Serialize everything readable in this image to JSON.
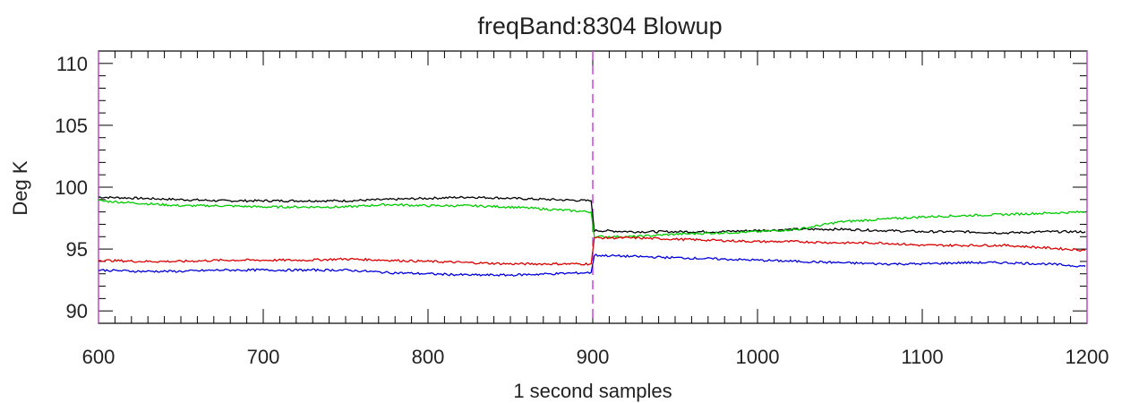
{
  "chart_data": {
    "type": "line",
    "title": "freqBand:8304 Blowup",
    "xlabel": "1 second samples",
    "ylabel": "Deg K",
    "xlim": [
      600,
      1200
    ],
    "ylim": [
      89,
      111
    ],
    "x_ticks": [
      600,
      700,
      800,
      900,
      1000,
      1100,
      1200
    ],
    "y_ticks": [
      90,
      95,
      100,
      105,
      110
    ],
    "y_minor_step": 1,
    "x_minor_step": 10,
    "grid": false,
    "marker_line": {
      "x": 900,
      "color": "#cc44dd",
      "style": "dashed"
    },
    "colors": {
      "frame": "#000000",
      "text": "#222222"
    },
    "series": [
      {
        "color": "#000000",
        "x": [
          600,
          625,
          650,
          675,
          700,
          725,
          750,
          775,
          800,
          825,
          850,
          875,
          899,
          901,
          925,
          950,
          975,
          1000,
          1025,
          1050,
          1075,
          1100,
          1125,
          1150,
          1175,
          1199
        ],
        "y": [
          99.2,
          99.1,
          99.0,
          98.9,
          98.9,
          98.9,
          98.9,
          99.0,
          99.1,
          99.2,
          99.1,
          99.0,
          98.9,
          96.5,
          96.4,
          96.4,
          96.4,
          96.5,
          96.6,
          96.6,
          96.5,
          96.4,
          96.4,
          96.3,
          96.4,
          96.4
        ]
      },
      {
        "color": "#00cc00",
        "x": [
          600,
          625,
          650,
          675,
          700,
          725,
          750,
          775,
          800,
          825,
          850,
          875,
          899,
          901,
          925,
          950,
          975,
          1000,
          1025,
          1050,
          1075,
          1100,
          1125,
          1150,
          1175,
          1199
        ],
        "y": [
          98.9,
          98.7,
          98.5,
          98.5,
          98.4,
          98.4,
          98.4,
          98.6,
          98.5,
          98.5,
          98.4,
          98.2,
          98.0,
          96.0,
          96.0,
          96.2,
          96.3,
          96.4,
          96.6,
          97.2,
          97.4,
          97.6,
          97.7,
          97.8,
          97.9,
          98.0
        ]
      },
      {
        "color": "#dd0000",
        "x": [
          600,
          625,
          650,
          675,
          700,
          725,
          750,
          775,
          800,
          825,
          850,
          875,
          899,
          901,
          925,
          950,
          975,
          1000,
          1025,
          1050,
          1075,
          1100,
          1125,
          1150,
          1175,
          1199
        ],
        "y": [
          94.1,
          94.0,
          94.0,
          94.1,
          94.1,
          94.1,
          94.2,
          94.1,
          94.0,
          93.9,
          93.8,
          93.8,
          93.8,
          95.9,
          95.9,
          95.8,
          95.7,
          95.6,
          95.6,
          95.5,
          95.5,
          95.3,
          95.3,
          95.3,
          95.1,
          94.9
        ]
      },
      {
        "color": "#0000dd",
        "x": [
          600,
          625,
          650,
          675,
          700,
          725,
          750,
          775,
          800,
          825,
          850,
          875,
          899,
          901,
          925,
          950,
          975,
          1000,
          1025,
          1050,
          1075,
          1100,
          1125,
          1150,
          1175,
          1199
        ],
        "y": [
          93.3,
          93.2,
          93.2,
          93.3,
          93.3,
          93.3,
          93.3,
          93.1,
          93.0,
          92.9,
          92.9,
          93.0,
          93.1,
          94.5,
          94.4,
          94.3,
          94.2,
          94.1,
          94.0,
          93.9,
          93.8,
          93.8,
          93.9,
          93.9,
          93.8,
          93.6
        ]
      }
    ]
  }
}
